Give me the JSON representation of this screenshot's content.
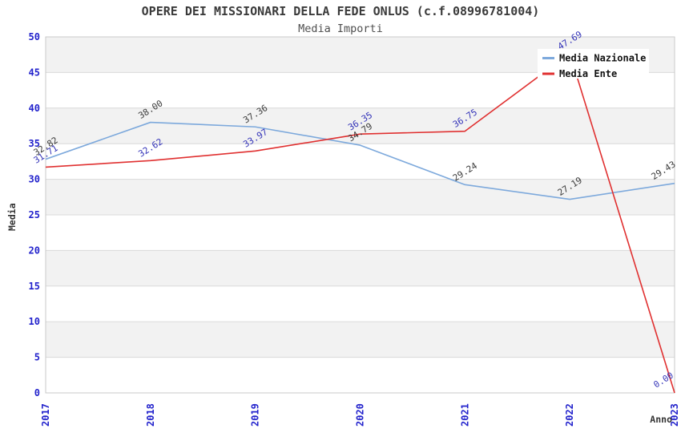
{
  "chart_data": {
    "type": "line",
    "title": "OPERE DEI MISSIONARI DELLA FEDE ONLUS (c.f.08996781004)",
    "subtitle": "Media Importi",
    "xlabel": "Anno",
    "ylabel": "Media",
    "categories": [
      "2017",
      "2018",
      "2019",
      "2020",
      "2021",
      "2022",
      "2023"
    ],
    "ylim": [
      0,
      50
    ],
    "ytick_step": 5,
    "grid": true,
    "legend_position": "top-right",
    "series": [
      {
        "name": "Media Nazionale",
        "color": "#7DA9DC",
        "label_color": "#3A3A3A",
        "values": [
          32.82,
          38.0,
          37.36,
          34.79,
          29.24,
          27.19,
          29.43
        ]
      },
      {
        "name": "Media Ente",
        "color": "#E03030",
        "label_color": "#3333B8",
        "values": [
          31.71,
          32.62,
          33.97,
          36.35,
          36.75,
          47.69,
          0.0
        ]
      }
    ],
    "colors": {
      "tick_label": "#2222CC",
      "band": "#F2F2F2",
      "grid_line": "#D9D9D9",
      "plot_border": "#C9C9C9",
      "title": "#3A3A3A",
      "legend_bg": "#FFFFFF"
    }
  }
}
